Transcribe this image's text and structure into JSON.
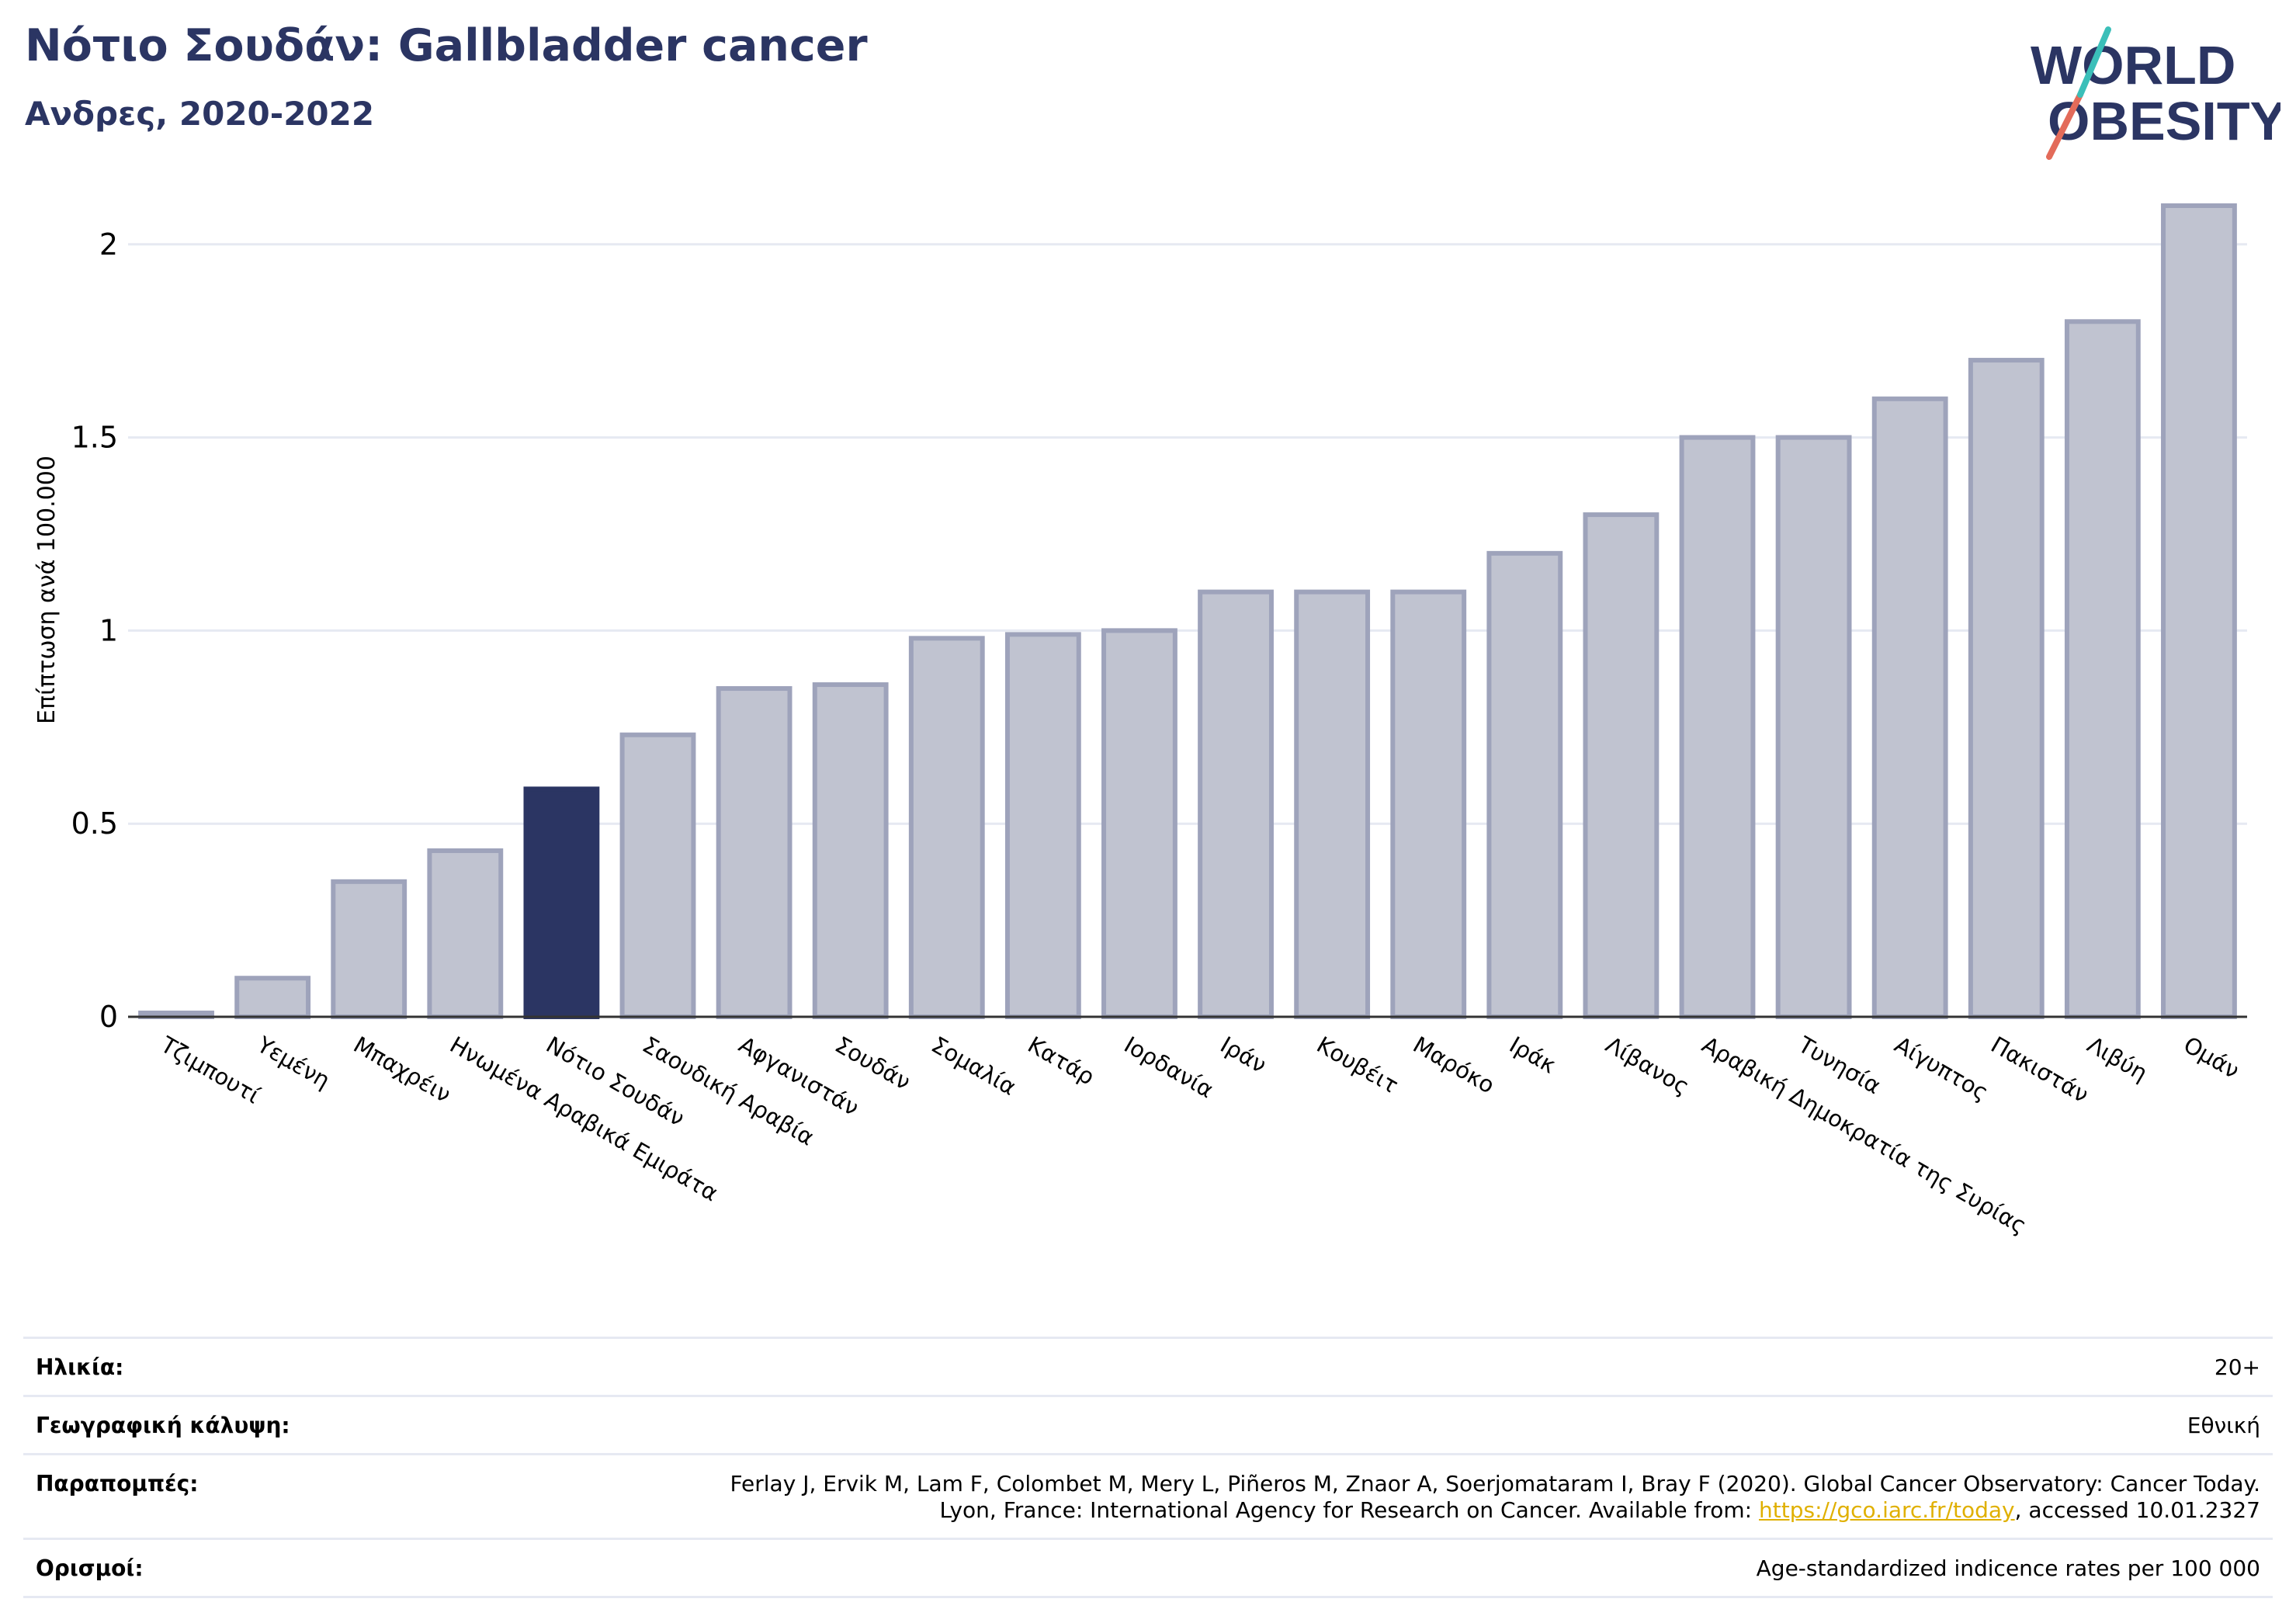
{
  "header": {
    "title": "Νότιο Σουδάν: Gallbladder cancer",
    "subtitle": "Ανδρες, 2020-2022"
  },
  "logo": {
    "line1": "WORLD",
    "line2": "OBESITY",
    "accent_colors": [
      "#e36b5a",
      "#3bbfb9"
    ],
    "text_color": "#2b3563"
  },
  "chart_data": {
    "type": "bar",
    "title": "Νότιο Σουδάν: Gallbladder cancer",
    "subtitle": "Ανδρες, 2020-2022",
    "ylabel": "Επίπτωση ανά 100.000",
    "xlabel": "",
    "ylim": [
      0,
      2.1
    ],
    "yticks": [
      0,
      0.5,
      1,
      1.5,
      2
    ],
    "ytick_labels": [
      "0",
      "0.5",
      "1",
      "1.5",
      "2"
    ],
    "grid": true,
    "categories": [
      "Τζιμπουτί",
      "Υεμένη",
      "Μπαχρέιν",
      "Ηνωμένα Αραβικά Εμιράτα",
      "Νότιο Σουδάν",
      "Σαουδική Αραβία",
      "Αφγανιστάν",
      "Σουδάν",
      "Σομαλία",
      "Κατάρ",
      "Ιορδανία",
      "Ιράν",
      "Κουβέιτ",
      "Μαρόκο",
      "Ιράκ",
      "Λίβανος",
      "Αραβική Δημοκρατία της Συρίας",
      "Τυνησία",
      "Αίγυπτος",
      "Πακιστάν",
      "Λιβύη",
      "Ομάν"
    ],
    "values": [
      0.01,
      0.1,
      0.35,
      0.43,
      0.59,
      0.73,
      0.85,
      0.86,
      0.98,
      0.99,
      1.0,
      1.1,
      1.1,
      1.1,
      1.2,
      1.3,
      1.5,
      1.5,
      1.6,
      1.7,
      1.8,
      2.1
    ],
    "highlight": "Νότιο Σουδάν",
    "colors": {
      "highlight": "#2b3563",
      "bar": "#c0c3d0",
      "bar_edge": "#9ea3bb",
      "grid": "#e6e9f2"
    }
  },
  "info": {
    "rows": [
      {
        "label": "Ηλικία:",
        "value": "20+"
      },
      {
        "label": "Γεωγραφική κάλυψη:",
        "value": "Εθνική"
      },
      {
        "label": "Παραπομπές:",
        "value_line1": "Ferlay J, Ervik M, Lam F, Colombet M, Mery L, Piñeros M, Znaor A, Soerjomataram I, Bray F (2020). Global Cancer Observatory: Cancer Today.",
        "value_line2_pre": "Lyon, France: International Agency for Research on Cancer. Available from: ",
        "link": "https://gco.iarc.fr/today",
        "value_line2_post": ", accessed 10.01.2327"
      },
      {
        "label": "Ορισμοί:",
        "value": "Age-standardized indicence rates per 100 000"
      }
    ]
  }
}
